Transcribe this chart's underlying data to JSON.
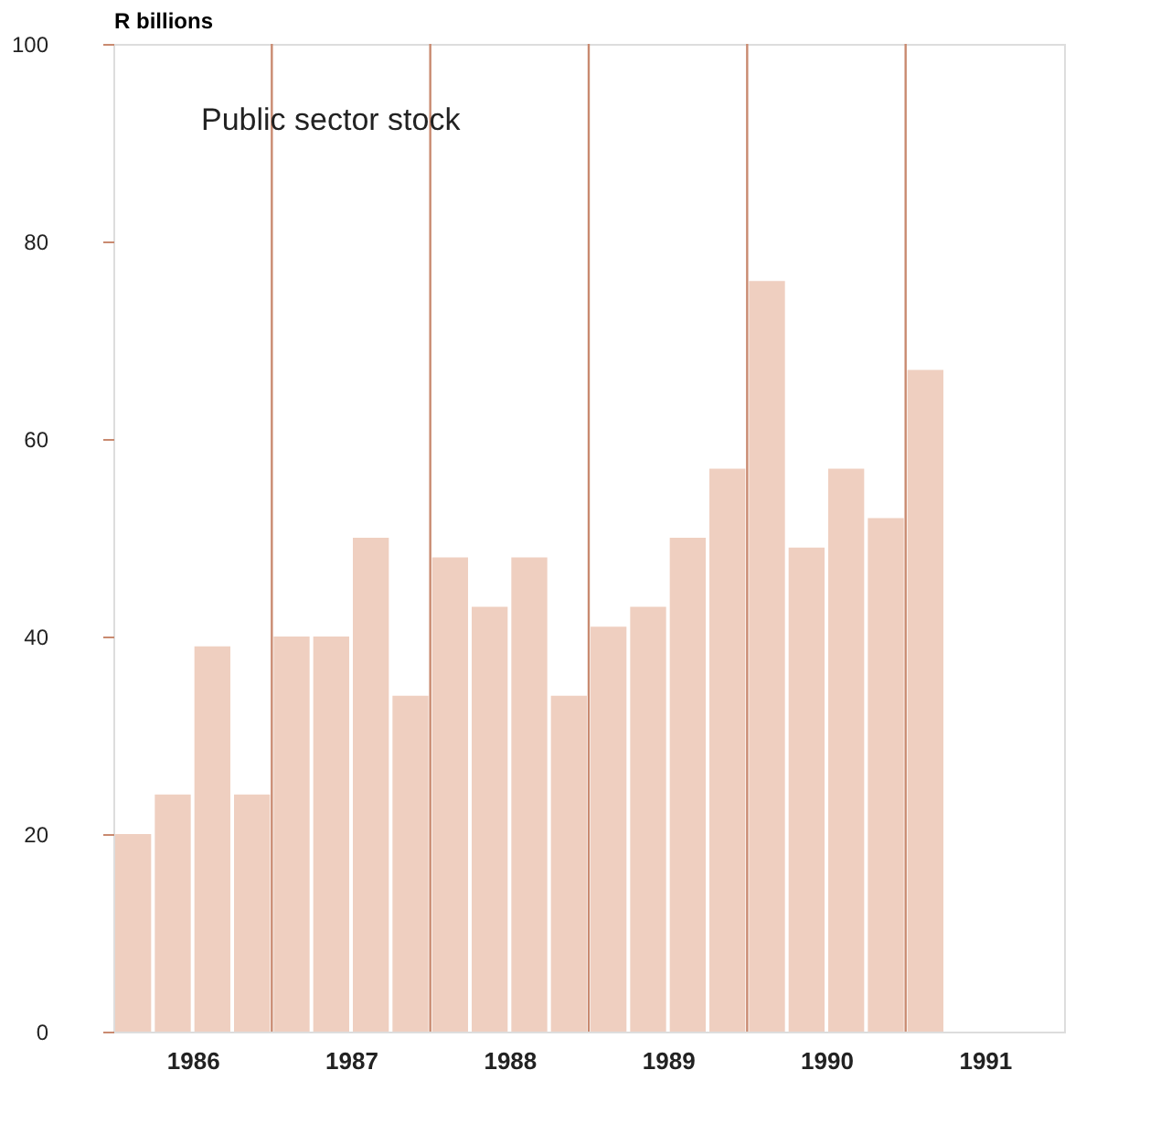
{
  "chart_data": {
    "type": "bar",
    "ylabel": "R billions",
    "annotations": [
      "Public sector stock"
    ],
    "x": [
      1986.125,
      1986.375,
      1986.625,
      1986.875,
      1987.125,
      1987.375,
      1987.625,
      1987.875,
      1988.125,
      1988.375,
      1988.625,
      1988.875,
      1989.125,
      1989.375,
      1989.625,
      1989.875,
      1990.125,
      1990.375,
      1990.625,
      1990.875,
      1991.125
    ],
    "values": [
      20,
      24,
      39,
      24,
      40,
      40,
      50,
      34,
      48,
      43,
      48,
      34,
      41,
      43,
      50,
      57,
      76,
      49,
      57,
      52,
      67
    ],
    "color": "#efcfc0",
    "xlim": [
      1986,
      1992
    ],
    "xticks": [
      {
        "value": 1986.5,
        "label": "1986"
      },
      {
        "value": 1987.5,
        "label": "1987"
      },
      {
        "value": 1988.5,
        "label": "1988"
      },
      {
        "value": 1989.5,
        "label": "1989"
      },
      {
        "value": 1990.5,
        "label": "1990"
      },
      {
        "value": 1991.5,
        "label": "1991"
      }
    ],
    "ylim": [
      0,
      100
    ],
    "yticks": [
      0,
      20,
      40,
      60,
      80,
      100
    ],
    "ref_lines": [
      {
        "axis": "x",
        "value": 1987,
        "color": "#c98a70"
      },
      {
        "axis": "x",
        "value": 1988,
        "color": "#c98a70"
      },
      {
        "axis": "x",
        "value": 1989,
        "color": "#c98a70"
      },
      {
        "axis": "x",
        "value": 1990,
        "color": "#c98a70"
      },
      {
        "axis": "x",
        "value": 1991,
        "color": "#c98a70"
      }
    ],
    "grid": false
  }
}
